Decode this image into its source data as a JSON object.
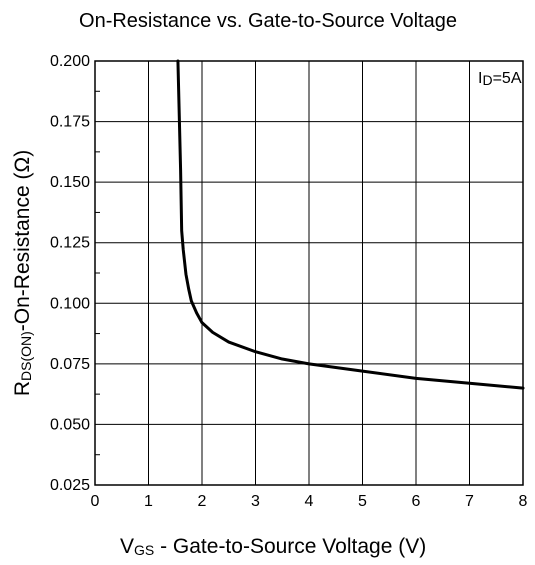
{
  "chart_data": {
    "type": "line",
    "title": "On-Resistance vs. Gate-to-Source Voltage",
    "xlabel": {
      "main": "V",
      "subscript": "GS",
      "rest": " - Gate-to-Source Voltage (V)"
    },
    "ylabel": {
      "main": "R",
      "subscript": "DS(ON)",
      "rest": "-On-Resistance (Ω)"
    },
    "annotation": {
      "main": "I",
      "subscript": "D",
      "rest": "=5A"
    },
    "xlim": [
      0,
      8
    ],
    "ylim": [
      0.025,
      0.2
    ],
    "x_ticks": [
      "0",
      "1",
      "2",
      "3",
      "4",
      "5",
      "6",
      "7",
      "8"
    ],
    "y_ticks": [
      "0.025",
      "0.050",
      "0.075",
      "0.100",
      "0.125",
      "0.150",
      "0.175",
      "0.200"
    ],
    "grid": true,
    "series": [
      {
        "x": [
          1.55,
          1.6,
          1.62,
          1.65,
          1.7,
          1.75,
          1.8,
          1.9,
          2.0,
          2.2,
          2.5,
          3.0,
          3.5,
          4.0,
          5.0,
          6.0,
          7.0,
          8.0
        ],
        "y": [
          0.2,
          0.155,
          0.13,
          0.122,
          0.112,
          0.106,
          0.101,
          0.096,
          0.092,
          0.088,
          0.084,
          0.08,
          0.077,
          0.075,
          0.072,
          0.069,
          0.067,
          0.065
        ]
      }
    ]
  }
}
